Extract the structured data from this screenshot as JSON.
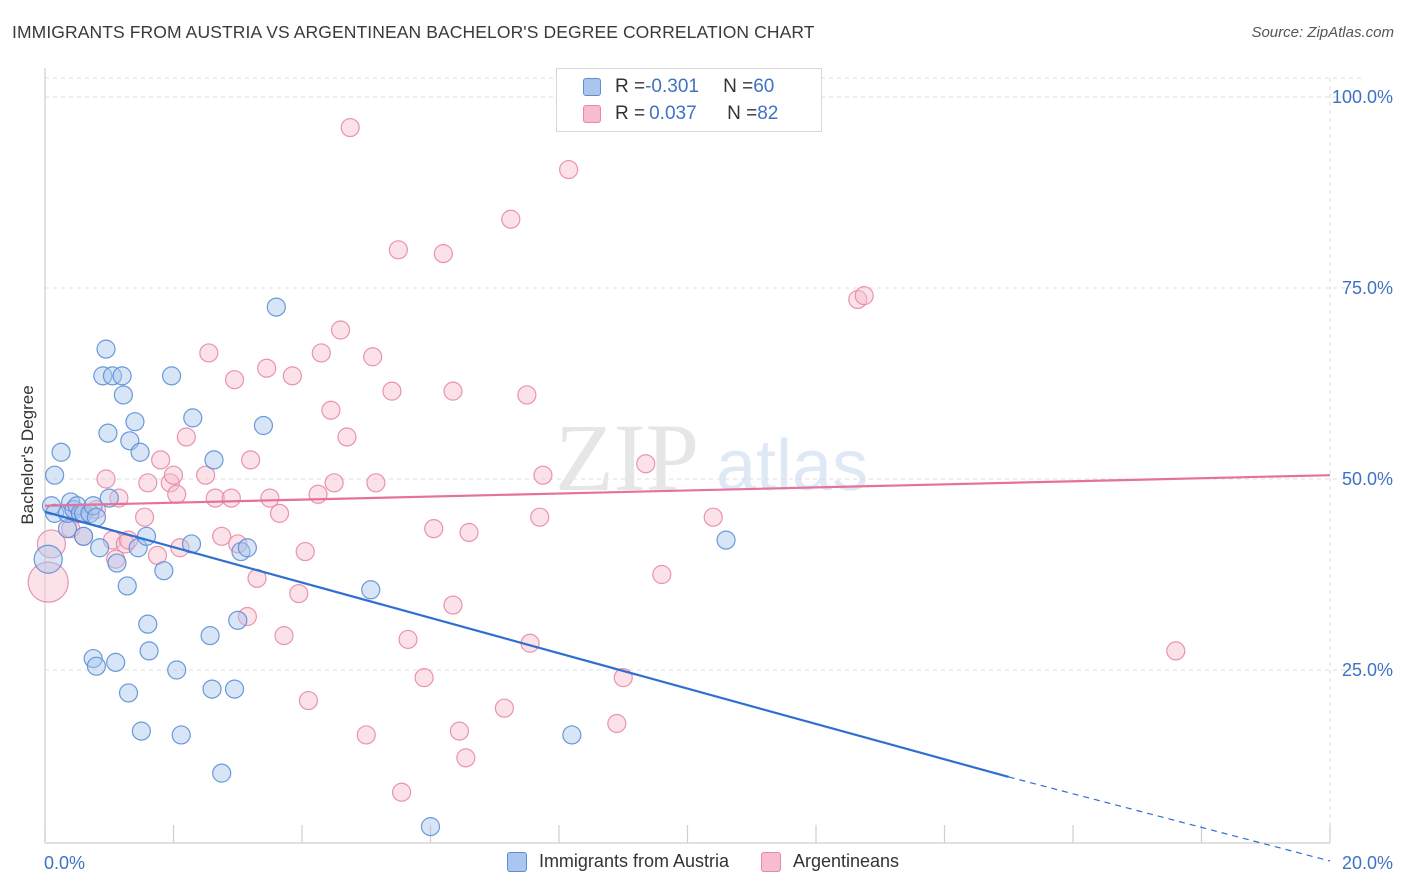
{
  "header": {
    "title": "IMMIGRANTS FROM AUSTRIA VS ARGENTINEAN BACHELOR'S DEGREE CORRELATION CHART",
    "source": "Source: ZipAtlas.com"
  },
  "watermark": {
    "zip": "ZIP",
    "atlas": "atlas"
  },
  "stats_legend": [
    {
      "r_label": "R = ",
      "r_value": "-0.301",
      "n_label": "N = ",
      "n_value": "60"
    },
    {
      "r_label": "R = ",
      "r_value": "0.037",
      "n_label": "N = ",
      "n_value": "82"
    }
  ],
  "colors": {
    "austria_fill": "#a9c6ee",
    "austria_stroke": "#5a8fd6",
    "austria_line": "#2f6fd0",
    "argentina_fill": "#f7bccd",
    "argentina_stroke": "#e888a6",
    "argentina_line": "#e5729a",
    "tick_label": "#3f72c4",
    "grid": "#dedede"
  },
  "chart_data": {
    "type": "scatter",
    "title": "IMMIGRANTS FROM AUSTRIA VS ARGENTINEAN BACHELOR'S DEGREE CORRELATION CHART",
    "xlabel": "",
    "ylabel": "Bachelor's Degree",
    "xlim": [
      0,
      20
    ],
    "ylim": [
      0,
      105
    ],
    "x_tick_labels": [
      "0.0%",
      "20.0%"
    ],
    "y_ticks": [
      25,
      50,
      75,
      100
    ],
    "y_tick_labels": [
      "25.0%",
      "50.0%",
      "75.0%",
      "100.0%"
    ],
    "grid": true,
    "series": [
      {
        "name": "Immigrants from Austria",
        "points": [
          [
            0.05,
            39.5,
            2
          ],
          [
            0.1,
            46.5,
            1
          ],
          [
            0.15,
            45.5,
            1
          ],
          [
            0.15,
            50.5,
            1
          ],
          [
            0.25,
            53.5,
            1
          ],
          [
            0.35,
            43.5,
            1
          ],
          [
            0.35,
            45.5,
            1
          ],
          [
            0.4,
            47.0,
            1
          ],
          [
            0.45,
            46.0,
            1
          ],
          [
            0.5,
            46.5,
            1
          ],
          [
            0.55,
            45.5,
            1
          ],
          [
            0.6,
            45.5,
            1
          ],
          [
            0.6,
            42.5,
            1
          ],
          [
            0.7,
            45.5,
            1
          ],
          [
            0.75,
            46.5,
            1
          ],
          [
            0.8,
            45.0,
            1
          ],
          [
            0.75,
            26.5,
            1
          ],
          [
            0.8,
            25.5,
            1
          ],
          [
            0.85,
            41.0,
            1
          ],
          [
            0.9,
            63.5,
            1
          ],
          [
            0.95,
            67.0,
            1
          ],
          [
            0.98,
            56.0,
            1
          ],
          [
            1.0,
            47.5,
            1
          ],
          [
            1.05,
            63.5,
            1
          ],
          [
            1.1,
            26.0,
            1
          ],
          [
            1.12,
            39.0,
            1
          ],
          [
            1.2,
            63.5,
            1
          ],
          [
            1.22,
            61.0,
            1
          ],
          [
            1.28,
            36.0,
            1
          ],
          [
            1.3,
            22.0,
            1
          ],
          [
            1.32,
            55.0,
            1
          ],
          [
            1.4,
            57.5,
            1
          ],
          [
            1.48,
            53.5,
            1
          ],
          [
            1.5,
            17.0,
            1
          ],
          [
            1.45,
            41.0,
            1
          ],
          [
            1.58,
            42.5,
            1
          ],
          [
            1.6,
            31.0,
            1
          ],
          [
            1.62,
            27.5,
            1
          ],
          [
            1.85,
            38.0,
            1
          ],
          [
            1.97,
            63.5,
            1
          ],
          [
            2.05,
            25.0,
            1
          ],
          [
            2.12,
            16.5,
            1
          ],
          [
            2.28,
            41.5,
            1
          ],
          [
            2.3,
            58.0,
            1
          ],
          [
            2.57,
            29.5,
            1
          ],
          [
            2.6,
            22.5,
            1
          ],
          [
            2.63,
            52.5,
            1
          ],
          [
            2.75,
            11.5,
            1
          ],
          [
            2.95,
            22.5,
            1
          ],
          [
            3.0,
            31.5,
            1
          ],
          [
            3.05,
            40.5,
            1
          ],
          [
            3.15,
            41.0,
            1
          ],
          [
            3.4,
            57.0,
            1
          ],
          [
            3.6,
            72.5,
            1
          ],
          [
            5.07,
            35.5,
            1
          ],
          [
            6.0,
            4.5,
            1
          ],
          [
            8.2,
            16.5,
            1
          ],
          [
            10.6,
            42.0,
            1
          ]
        ]
      },
      {
        "name": "Argentineans",
        "points": [
          [
            0.05,
            36.5,
            3
          ],
          [
            0.1,
            41.5,
            2
          ],
          [
            0.4,
            43.5,
            1
          ],
          [
            0.5,
            45.5,
            1
          ],
          [
            0.6,
            42.5,
            1
          ],
          [
            0.8,
            46.0,
            1
          ],
          [
            0.95,
            50.0,
            1
          ],
          [
            1.05,
            42.0,
            1
          ],
          [
            1.1,
            39.5,
            1
          ],
          [
            1.15,
            47.5,
            1
          ],
          [
            1.25,
            41.5,
            1
          ],
          [
            1.3,
            42.0,
            1
          ],
          [
            1.55,
            45.0,
            1
          ],
          [
            1.6,
            49.5,
            1
          ],
          [
            1.75,
            40.0,
            1
          ],
          [
            1.8,
            52.5,
            1
          ],
          [
            1.95,
            49.5,
            1
          ],
          [
            2.0,
            50.5,
            1
          ],
          [
            2.05,
            48.0,
            1
          ],
          [
            2.1,
            41.0,
            1
          ],
          [
            2.2,
            55.5,
            1
          ],
          [
            2.5,
            50.5,
            1
          ],
          [
            2.55,
            66.5,
            1
          ],
          [
            2.65,
            47.5,
            1
          ],
          [
            2.75,
            42.5,
            1
          ],
          [
            2.9,
            47.5,
            1
          ],
          [
            2.95,
            63.0,
            1
          ],
          [
            3.0,
            41.5,
            1
          ],
          [
            3.15,
            32.0,
            1
          ],
          [
            3.2,
            52.5,
            1
          ],
          [
            3.3,
            37.0,
            1
          ],
          [
            3.45,
            64.5,
            1
          ],
          [
            3.5,
            47.5,
            1
          ],
          [
            3.65,
            45.5,
            1
          ],
          [
            3.72,
            29.5,
            1
          ],
          [
            3.85,
            63.5,
            1
          ],
          [
            3.95,
            35.0,
            1
          ],
          [
            4.05,
            40.5,
            1
          ],
          [
            4.1,
            21.0,
            1
          ],
          [
            4.25,
            48.0,
            1
          ],
          [
            4.3,
            66.5,
            1
          ],
          [
            4.45,
            59.0,
            1
          ],
          [
            4.5,
            49.5,
            1
          ],
          [
            4.6,
            69.5,
            1
          ],
          [
            4.7,
            55.5,
            1
          ],
          [
            4.75,
            96.0,
            1
          ],
          [
            5.0,
            16.5,
            1
          ],
          [
            5.1,
            66.0,
            1
          ],
          [
            5.15,
            49.5,
            1
          ],
          [
            5.4,
            61.5,
            1
          ],
          [
            5.5,
            80.0,
            1
          ],
          [
            5.55,
            9.0,
            1
          ],
          [
            5.65,
            29.0,
            1
          ],
          [
            5.9,
            24.0,
            1
          ],
          [
            6.05,
            43.5,
            1
          ],
          [
            6.2,
            79.5,
            1
          ],
          [
            6.35,
            61.5,
            1
          ],
          [
            6.35,
            33.5,
            1
          ],
          [
            6.45,
            17.0,
            1
          ],
          [
            6.55,
            13.5,
            1
          ],
          [
            6.6,
            43.0,
            1
          ],
          [
            7.15,
            20.0,
            1
          ],
          [
            7.25,
            84.0,
            1
          ],
          [
            7.5,
            61.0,
            1
          ],
          [
            7.55,
            28.5,
            1
          ],
          [
            7.75,
            50.5,
            1
          ],
          [
            7.7,
            45.0,
            1
          ],
          [
            8.15,
            90.5,
            1
          ],
          [
            8.9,
            18.0,
            1
          ],
          [
            9.0,
            24.0,
            1
          ],
          [
            9.35,
            52.0,
            1
          ],
          [
            9.6,
            37.5,
            1
          ],
          [
            10.4,
            45.0,
            1
          ],
          [
            12.65,
            73.5,
            1
          ],
          [
            12.75,
            74.0,
            1
          ],
          [
            17.6,
            27.5,
            1
          ]
        ]
      }
    ],
    "trend_lines": [
      {
        "series": "Immigrants from Austria",
        "x": [
          0.0,
          15.0
        ],
        "y": [
          45.7,
          11.0
        ],
        "dashed_to": [
          20.0,
          0.0
        ]
      },
      {
        "series": "Argentineans",
        "x": [
          0.0,
          20.0
        ],
        "y": [
          46.5,
          50.5
        ]
      }
    ]
  }
}
